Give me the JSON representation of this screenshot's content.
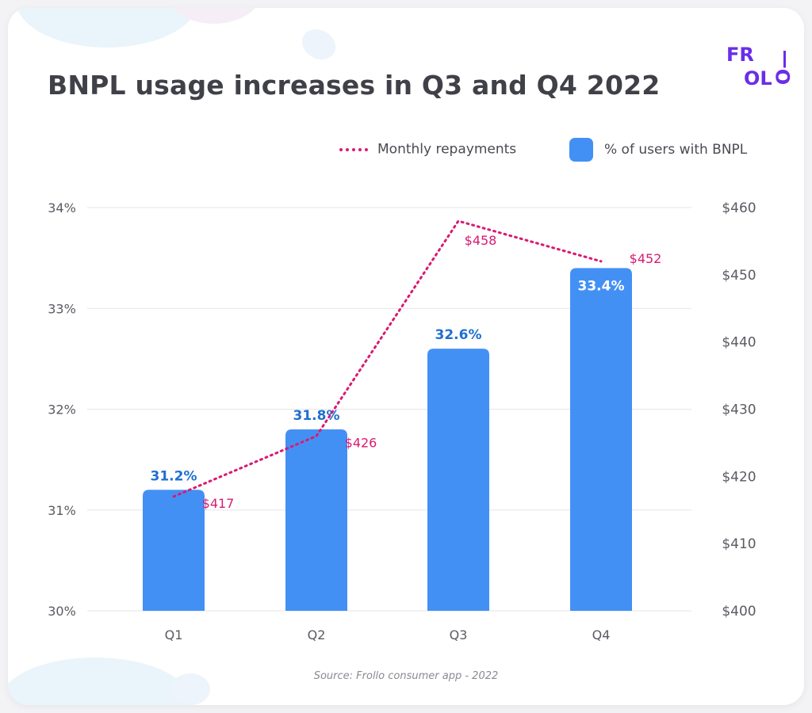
{
  "title": "BNPL usage increases in Q3 and Q4 2022",
  "source": "Source: Frollo consumer app - 2022",
  "logo": {
    "top": "FR",
    "bottom": "OL",
    "side": "O—"
  },
  "colors": {
    "bar": "#4390f5",
    "bar_label": "#1f6fd1",
    "line": "#d81b72",
    "grid": "#e6e6ea",
    "axis_text": "#5a5a62",
    "logo": "#6a2ee8"
  },
  "chart_data": {
    "type": "bar",
    "title": "BNPL usage increases in Q3 and Q4 2022",
    "categories": [
      "Q1",
      "Q2",
      "Q3",
      "Q4"
    ],
    "legend_placement": "top-right",
    "grid": true,
    "y_left": {
      "range": [
        30,
        34
      ],
      "ticks": [
        "30%",
        "31%",
        "32%",
        "33%",
        "34%"
      ]
    },
    "y_right": {
      "range": [
        400,
        460
      ],
      "ticks": [
        "$400",
        "$410",
        "$420",
        "$430",
        "$440",
        "$450",
        "$460"
      ]
    },
    "series": [
      {
        "name": "% of users with BNPL",
        "type": "bar",
        "axis": "left",
        "values": [
          31.2,
          31.8,
          32.6,
          33.4
        ],
        "labels": [
          "31.2%",
          "31.8%",
          "32.6%",
          "33.4%"
        ]
      },
      {
        "name": "Monthly repayments",
        "type": "line",
        "style": "dotted",
        "axis": "right",
        "values": [
          417,
          426,
          458,
          452
        ],
        "labels": [
          "$417",
          "$426",
          "$458",
          "$452"
        ]
      }
    ]
  }
}
